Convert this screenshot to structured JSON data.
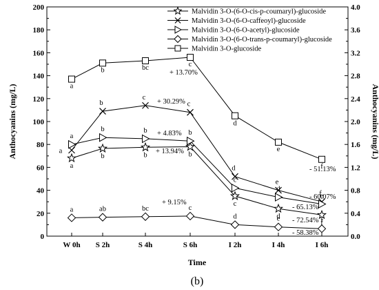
{
  "chart_data": {
    "type": "line",
    "categories": [
      "W 0h",
      "S 2h",
      "S 4h",
      "S 6h",
      "I 2h",
      "I 4h",
      "I 6h"
    ],
    "xlabel": "Time",
    "ylabel": "Anthocyanins (mg/L)",
    "ylabel_right": "Anthocyanins (mg/L)",
    "ylim": [
      0,
      200
    ],
    "ylim_right": [
      0,
      4.0
    ],
    "yticks": [
      "0",
      "20",
      "40",
      "60",
      "80",
      "100",
      "120",
      "140",
      "160",
      "180",
      "200"
    ],
    "yticks_right": [
      "0.0",
      "0.4",
      "0.8",
      "1.2",
      "1.6",
      "2.0",
      "2.4",
      "2.8",
      "3.2",
      "3.6",
      "4.0"
    ],
    "panel_label": "(b)",
    "legend_position": "top-right",
    "series": [
      {
        "name": "Malvidin 3-O-(6-O-cis-p-coumaryl)-glucoside",
        "marker": "star",
        "axis": "right",
        "values": [
          1.36,
          1.53,
          1.55,
          1.56,
          0.7,
          0.48,
          0.37
        ],
        "letters": [
          "a",
          "b",
          "b",
          "b",
          "c",
          "d",
          "f"
        ]
      },
      {
        "name": "Malvidin 3-O-(6-O-caffeoyl)-glucoside",
        "marker": "x",
        "axis": "left",
        "values": [
          75,
          109,
          114,
          108,
          52,
          40,
          30
        ],
        "letters": [
          "a",
          "b",
          "c",
          "c",
          "d",
          "e",
          "f"
        ]
      },
      {
        "name": "Malvidin 3-O-(6-O-acetyl)-glucoside",
        "marker": "triangle-right",
        "axis": "left",
        "values": [
          80,
          86,
          85,
          83,
          42,
          34,
          28
        ],
        "letters": [
          "a",
          "b",
          "b",
          "b",
          "c",
          "d",
          "e"
        ]
      },
      {
        "name": "Malvidin 3-O-(6-O-trans-p-coumaryl)-glucoside",
        "marker": "diamond",
        "axis": "left",
        "values": [
          16,
          16.5,
          17,
          17.5,
          10,
          8,
          6.5
        ],
        "letters": [
          "a",
          "ab",
          "bc",
          "c",
          "d",
          "e",
          "f"
        ]
      },
      {
        "name": "Malvidin 3-O-glucoside",
        "marker": "square",
        "axis": "left",
        "values": [
          137,
          151,
          153,
          156,
          105,
          82,
          67
        ],
        "letters": [
          "a",
          "b",
          "bc",
          "c",
          "d",
          "e",
          "f"
        ]
      }
    ],
    "annotations": [
      "+ 13.70%",
      "+ 30.29%",
      "+ 4.83%",
      "+ 13.94%",
      "+ 9.15%",
      "- 51.13%",
      "- 60.07%",
      "- 65.13%",
      "- 72.54%",
      "- 58.38%"
    ]
  }
}
